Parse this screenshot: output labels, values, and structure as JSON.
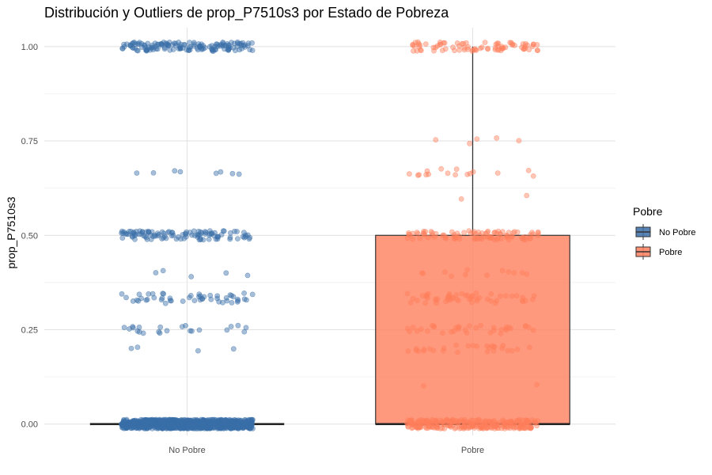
{
  "chart_data": {
    "type": "box",
    "title": "Distribución y Outliers de prop_P7510s3 por Estado de Pobreza",
    "xlabel": "",
    "ylabel": "prop_P7510s3",
    "ylim": [
      -0.03,
      1.05
    ],
    "yticks": [
      0.0,
      0.25,
      0.5,
      0.75,
      1.0
    ],
    "ytick_labels": [
      "0.00",
      "0.25",
      "0.50",
      "0.75",
      "1.00"
    ],
    "categories": [
      "No Pobre",
      "Pobre"
    ],
    "grid": true,
    "legend": {
      "title": "Pobre",
      "placement": "right",
      "entries": [
        "No Pobre",
        "Pobre"
      ]
    },
    "series": [
      {
        "category": "No Pobre",
        "color": "#3a6fa8",
        "box": {
          "q1": 0.0,
          "median": 0.0,
          "q3": 0.0,
          "whisker_low": 0.0,
          "whisker_high": 0.0
        },
        "jitter_clusters": [
          {
            "y": 0.0,
            "count": 900,
            "spread": 0.012
          },
          {
            "y": 1.0,
            "count": 150,
            "spread": 0.012
          },
          {
            "y": 0.667,
            "count": 8,
            "spread": 0.008
          },
          {
            "y": 0.5,
            "count": 110,
            "spread": 0.012
          },
          {
            "y": 0.4,
            "count": 5,
            "spread": 0.01
          },
          {
            "y": 0.333,
            "count": 50,
            "spread": 0.014
          },
          {
            "y": 0.25,
            "count": 22,
            "spread": 0.012
          },
          {
            "y": 0.2,
            "count": 4,
            "spread": 0.006
          }
        ]
      },
      {
        "category": "Pobre",
        "color": "#ff7f5c",
        "box": {
          "q1": 0.0,
          "median": 0.0,
          "q3": 0.5,
          "whisker_low": 0.0,
          "whisker_high": 1.0
        },
        "jitter_clusters": [
          {
            "y": 0.0,
            "count": 300,
            "spread": 0.012
          },
          {
            "y": 1.0,
            "count": 80,
            "spread": 0.012
          },
          {
            "y": 0.75,
            "count": 5,
            "spread": 0.01
          },
          {
            "y": 0.667,
            "count": 16,
            "spread": 0.01
          },
          {
            "y": 0.6,
            "count": 2,
            "spread": 0.006
          },
          {
            "y": 0.5,
            "count": 90,
            "spread": 0.012
          },
          {
            "y": 0.4,
            "count": 12,
            "spread": 0.01
          },
          {
            "y": 0.333,
            "count": 55,
            "spread": 0.014
          },
          {
            "y": 0.25,
            "count": 35,
            "spread": 0.012
          },
          {
            "y": 0.2,
            "count": 28,
            "spread": 0.01
          },
          {
            "y": 0.1,
            "count": 2,
            "spread": 0.005
          }
        ]
      }
    ]
  }
}
